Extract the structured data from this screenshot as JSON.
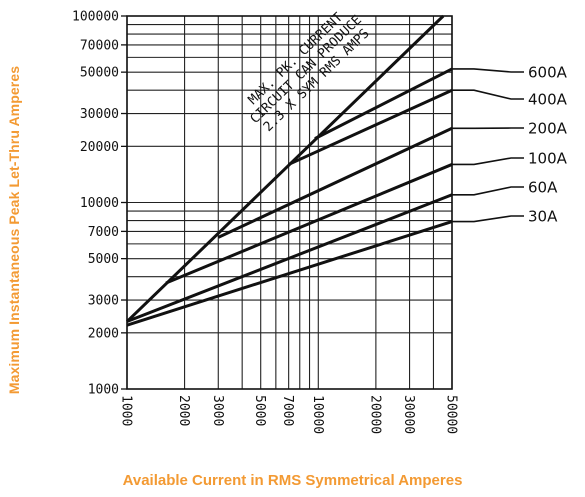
{
  "chart_data": {
    "type": "line",
    "xscale": "log",
    "yscale": "log",
    "xlim": [
      1000,
      50000
    ],
    "ylim": [
      1000,
      100000
    ],
    "xlabel": "Available Current in RMS Symmetrical Amperes",
    "ylabel": "Maximum Instantaneous Peak Let-Thru Amperes",
    "xticks": [
      {
        "value": 1000,
        "label": "1000"
      },
      {
        "value": 2000,
        "label": "2000"
      },
      {
        "value": 3000,
        "label": "3000"
      },
      {
        "value": 5000,
        "label": "5000"
      },
      {
        "value": 7000,
        "label": "7000"
      },
      {
        "value": 10000,
        "label": "10000"
      },
      {
        "value": 20000,
        "label": "20000"
      },
      {
        "value": 30000,
        "label": "30000"
      },
      {
        "value": 50000,
        "label": "50000"
      }
    ],
    "yticks": [
      {
        "value": 1000,
        "label": "1000"
      },
      {
        "value": 2000,
        "label": "2000"
      },
      {
        "value": 3000,
        "label": "3000"
      },
      {
        "value": 5000,
        "label": "5000"
      },
      {
        "value": 7000,
        "label": "7000"
      },
      {
        "value": 10000,
        "label": "10000"
      },
      {
        "value": 20000,
        "label": "20000"
      },
      {
        "value": 30000,
        "label": "30000"
      },
      {
        "value": 50000,
        "label": "50000"
      },
      {
        "value": 70000,
        "label": "70000"
      },
      {
        "value": 100000,
        "label": "100000"
      }
    ],
    "reference_line": {
      "name": "MAX. PK. CURRENT CIRCUIT CAN PRODUCE 2.3 X SYM RMS AMPS",
      "x": [
        1000,
        45000
      ],
      "y": [
        2300,
        100000
      ]
    },
    "annotation": [
      "MAX. PK. CURRENT",
      "CIRCUIT CAN PRODUCE",
      "2.3 X SYM RMS AMPS"
    ],
    "series": [
      {
        "name": "600A",
        "x": [
          9600,
          50000
        ],
        "y": [
          22000,
          52000
        ]
      },
      {
        "name": "400A",
        "x": [
          7000,
          50000
        ],
        "y": [
          16000,
          40000
        ]
      },
      {
        "name": "200A",
        "x": [
          3000,
          50000
        ],
        "y": [
          6500,
          25000
        ]
      },
      {
        "name": "100A",
        "x": [
          1600,
          50000
        ],
        "y": [
          3700,
          16000
        ]
      },
      {
        "name": "60A",
        "x": [
          1000,
          50000
        ],
        "y": [
          2300,
          11000
        ]
      },
      {
        "name": "30A",
        "x": [
          1000,
          50000
        ],
        "y": [
          2200,
          7900
        ]
      }
    ]
  }
}
